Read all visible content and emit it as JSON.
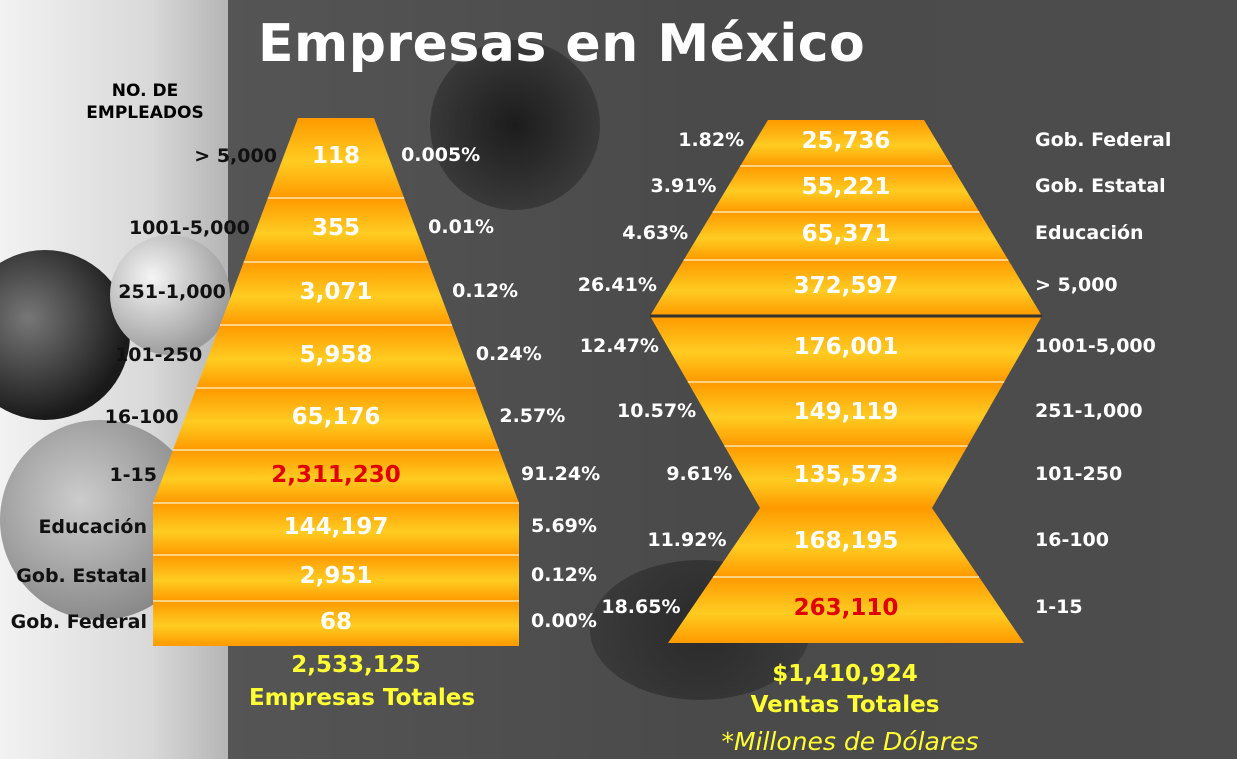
{
  "title": "Empresas en México",
  "left_header": "NO. DE EMPLEADOS",
  "colors": {
    "fill_dark": "#ff9900",
    "fill_light": "#ffcc22",
    "highlight": "#e00000",
    "totals": "#ffff33"
  },
  "chart_data": [
    {
      "type": "table",
      "measure": "Empresas",
      "rows": [
        {
          "category": "> 5,000",
          "value": "118",
          "percent": "0.005%"
        },
        {
          "category": "1001-5,000",
          "value": "355",
          "percent": "0.01%"
        },
        {
          "category": "251-1,000",
          "value": "3,071",
          "percent": "0.12%"
        },
        {
          "category": "101-250",
          "value": "5,958",
          "percent": "0.24%"
        },
        {
          "category": "16-100",
          "value": "65,176",
          "percent": "2.57%"
        },
        {
          "category": "1-15",
          "value": "2,311,230",
          "percent": "91.24%"
        },
        {
          "category": "Educación",
          "value": "144,197",
          "percent": "5.69%"
        },
        {
          "category": "Gob. Estatal",
          "value": "2,951",
          "percent": "0.12%"
        },
        {
          "category": "Gob. Federal",
          "value": "68",
          "percent": "0.00%"
        }
      ],
      "total_value": "2,533,125",
      "total_label": "Empresas Totales"
    },
    {
      "type": "table",
      "measure": "Ventas",
      "rows": [
        {
          "category": "Gob. Federal",
          "value": "25,736",
          "percent": "1.82%"
        },
        {
          "category": "Gob. Estatal",
          "value": "55,221",
          "percent": "3.91%"
        },
        {
          "category": "Educación",
          "value": "65,371",
          "percent": "4.63%"
        },
        {
          "category": "> 5,000",
          "value": "372,597",
          "percent": "26.41%"
        },
        {
          "category": "1001-5,000",
          "value": "176,001",
          "percent": "12.47%"
        },
        {
          "category": "251-1,000",
          "value": "149,119",
          "percent": "10.57%"
        },
        {
          "category": "101-250",
          "value": "135,573",
          "percent": "9.61%"
        },
        {
          "category": "16-100",
          "value": "168,195",
          "percent": "11.92%"
        },
        {
          "category": "1-15",
          "value": "263,110",
          "percent": "18.65%"
        }
      ],
      "total_value": "$1,410,924",
      "total_label": "Ventas Totales",
      "note": "*Millones de Dólares"
    }
  ]
}
